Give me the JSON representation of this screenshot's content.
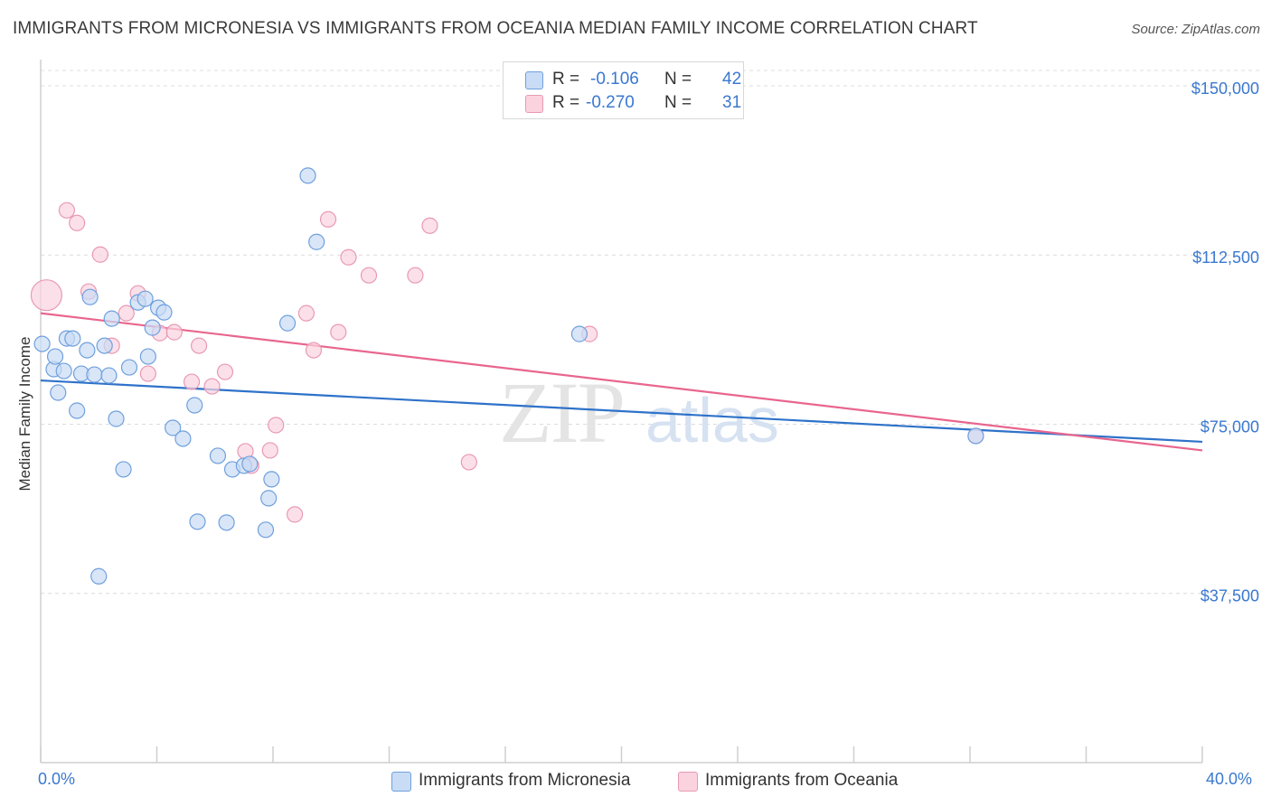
{
  "title": "IMMIGRANTS FROM MICRONESIA VS IMMIGRANTS FROM OCEANIA MEDIAN FAMILY INCOME CORRELATION CHART",
  "source": "Source: ZipAtlas.com",
  "watermark": {
    "zip": "ZIP",
    "atlas": "atlas"
  },
  "legend_top": [
    {
      "r_label": "R =",
      "r_value": "-0.106",
      "n_label": "N =",
      "n_value": "42",
      "color": "#a8c6ee"
    },
    {
      "r_label": "R =",
      "r_value": "-0.270",
      "n_label": "N =",
      "n_value": "31",
      "color": "#f6b8cb"
    }
  ],
  "legend_bottom": [
    {
      "label": "Immigrants from Micronesia",
      "color": "#a8c6ee"
    },
    {
      "label": "Immigrants from Oceania",
      "color": "#f6b8cb"
    }
  ],
  "x_axis": {
    "min_label": "0.0%",
    "max_label": "40.0%"
  },
  "chart_data": {
    "type": "scatter",
    "xlabel": "",
    "ylabel": "Median Family Income",
    "xlim": [
      0,
      40
    ],
    "ylim": [
      0,
      155000
    ],
    "y_ticks": [
      37500,
      75000,
      112500,
      150000
    ],
    "y_tick_labels": [
      "$37,500",
      "$75,000",
      "$112,500",
      "$150,000"
    ],
    "x_tick_labels": [
      "0.0%",
      "40.0%"
    ],
    "grid": true,
    "series": [
      {
        "name": "Immigrants from Micronesia",
        "color": "#6fa0dd",
        "fill": "#c9dcf5",
        "trend": {
          "x": [
            0,
            40
          ],
          "y": [
            84700,
            71100
          ],
          "color": "#2e72c9"
        },
        "points": [
          [
            0.05,
            92800
          ],
          [
            0.45,
            87200
          ],
          [
            0.5,
            90000
          ],
          [
            0.6,
            82000
          ],
          [
            0.8,
            86800
          ],
          [
            0.9,
            94000
          ],
          [
            1.1,
            94000
          ],
          [
            1.25,
            78000
          ],
          [
            1.4,
            86200
          ],
          [
            1.6,
            91400
          ],
          [
            1.7,
            103200
          ],
          [
            1.85,
            86000
          ],
          [
            2.0,
            41300
          ],
          [
            2.2,
            92400
          ],
          [
            2.35,
            85800
          ],
          [
            2.45,
            98400
          ],
          [
            2.6,
            76200
          ],
          [
            2.85,
            65000
          ],
          [
            3.05,
            87600
          ],
          [
            3.35,
            102000
          ],
          [
            3.6,
            102800
          ],
          [
            3.7,
            90000
          ],
          [
            3.85,
            96400
          ],
          [
            4.05,
            100800
          ],
          [
            4.25,
            99800
          ],
          [
            4.55,
            74200
          ],
          [
            4.9,
            71800
          ],
          [
            5.3,
            79200
          ],
          [
            5.4,
            53400
          ],
          [
            6.1,
            68000
          ],
          [
            6.4,
            53200
          ],
          [
            6.6,
            65000
          ],
          [
            7.0,
            65800
          ],
          [
            7.2,
            66200
          ],
          [
            7.75,
            51600
          ],
          [
            7.85,
            58600
          ],
          [
            7.95,
            62800
          ],
          [
            8.5,
            97400
          ],
          [
            9.2,
            130100
          ],
          [
            9.5,
            115400
          ],
          [
            18.55,
            95000
          ],
          [
            32.2,
            72400
          ]
        ]
      },
      {
        "name": "Immigrants from Oceania",
        "color": "#e89ab2",
        "fill": "#fbd3df",
        "trend": {
          "x": [
            0,
            40
          ],
          "y": [
            99600,
            69200
          ],
          "color": "#e8668e"
        },
        "points": [
          [
            0.2,
            103600
          ],
          [
            0.9,
            122400
          ],
          [
            1.25,
            119600
          ],
          [
            1.65,
            104400
          ],
          [
            2.05,
            112600
          ],
          [
            2.45,
            92400
          ],
          [
            2.95,
            99600
          ],
          [
            3.35,
            104000
          ],
          [
            3.7,
            86200
          ],
          [
            4.1,
            95200
          ],
          [
            4.6,
            95400
          ],
          [
            5.2,
            84400
          ],
          [
            5.45,
            92400
          ],
          [
            5.9,
            83400
          ],
          [
            6.35,
            86600
          ],
          [
            7.05,
            69000
          ],
          [
            7.25,
            65800
          ],
          [
            7.9,
            69200
          ],
          [
            8.1,
            74800
          ],
          [
            8.75,
            55000
          ],
          [
            9.15,
            99600
          ],
          [
            9.4,
            91400
          ],
          [
            9.9,
            120400
          ],
          [
            10.25,
            95400
          ],
          [
            10.6,
            112000
          ],
          [
            11.3,
            108000
          ],
          [
            12.9,
            108000
          ],
          [
            13.4,
            119000
          ],
          [
            14.75,
            66600
          ],
          [
            18.9,
            95000
          ],
          [
            32.2,
            72400
          ]
        ]
      }
    ]
  }
}
